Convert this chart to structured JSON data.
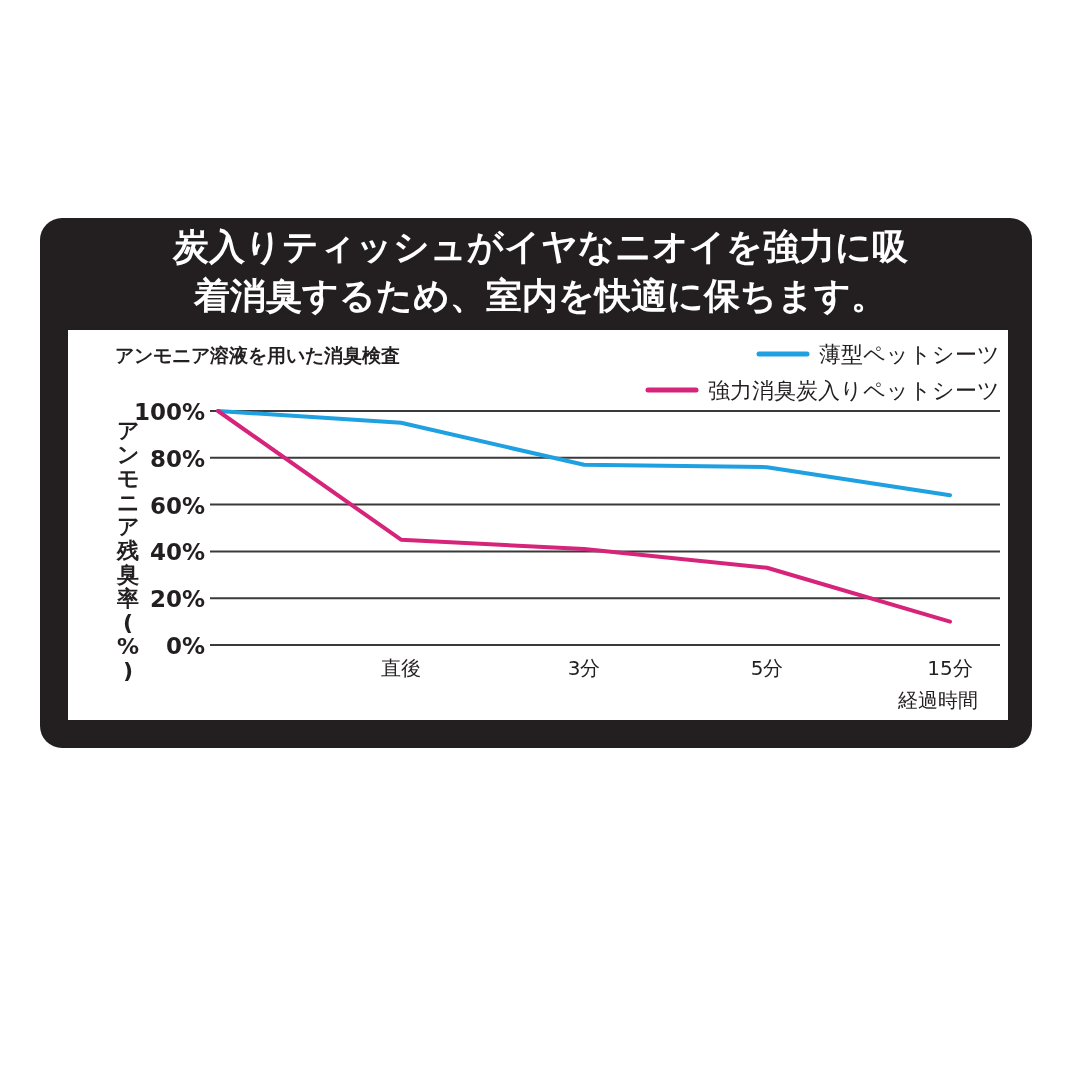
{
  "chart_data": {
    "type": "line",
    "title": "炭入りティッシュがイヤなニオイを強力に吸着消臭するため、室内を快適に保ちます。",
    "subtitle": "アンモニア溶液を用いた消臭検査",
    "xlabel": "経過時間",
    "ylabel": "アンモニア残臭率(%)",
    "categories": [
      null,
      "直後",
      "3分",
      "5分",
      "15分"
    ],
    "series": [
      {
        "name": "薄型ペットシーツ",
        "color": "#1fa0e0",
        "values": [
          100,
          95,
          77,
          76,
          64
        ]
      },
      {
        "name": "強力消臭炭入りペットシーツ",
        "color": "#d6247a",
        "values": [
          100,
          45,
          41,
          33,
          10
        ]
      }
    ],
    "ylim": [
      0,
      100
    ],
    "yticks": [
      {
        "value": 0,
        "label": "0%"
      },
      {
        "value": 20,
        "label": "20%"
      },
      {
        "value": 40,
        "label": "40%"
      },
      {
        "value": 60,
        "label": "60%"
      },
      {
        "value": 80,
        "label": "80%"
      },
      {
        "value": 100,
        "label": "100%"
      }
    ],
    "grid": "y",
    "legend": "top right",
    "marker": "none",
    "line_style": "solid"
  }
}
